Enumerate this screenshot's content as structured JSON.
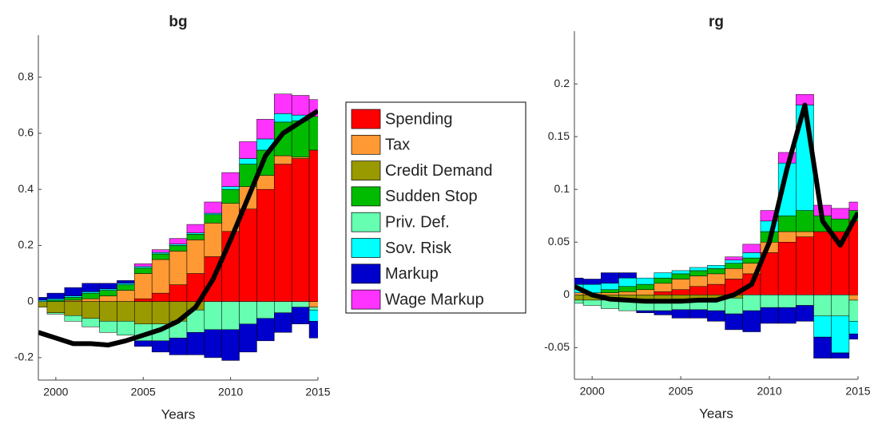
{
  "chart_data": [
    {
      "type": "bar",
      "stacked": true,
      "title": "bg",
      "x_label": "Years",
      "x": [
        1999,
        2000,
        2001,
        2002,
        2003,
        2004,
        2005,
        2006,
        2007,
        2008,
        2009,
        2010,
        2011,
        2012,
        2013,
        2014,
        2015
      ],
      "xlim": [
        1999,
        2015
      ],
      "xticks": [
        2000,
        2005,
        2010,
        2015
      ],
      "ylim": [
        -0.28,
        0.95
      ],
      "yticks": [
        -0.2,
        0,
        0.2,
        0.4,
        0.6,
        0.8
      ],
      "series": [
        {
          "values": [
            0,
            0,
            0,
            0,
            0,
            0,
            0.01,
            0.03,
            0.06,
            0.1,
            0.16,
            0.25,
            0.33,
            0.4,
            0.49,
            0.51,
            0.54
          ]
        },
        {
          "values": [
            0,
            0,
            0.005,
            0.01,
            0.02,
            0.04,
            0.09,
            0.12,
            0.12,
            0.12,
            0.12,
            0.1,
            0.08,
            0.05,
            0.03,
            0.005,
            -0.02
          ]
        },
        {
          "values": [
            -0.02,
            -0.04,
            -0.05,
            -0.06,
            -0.07,
            -0.07,
            -0.08,
            -0.08,
            -0.07,
            -0.03,
            0,
            0,
            0,
            0,
            0,
            0,
            0
          ]
        },
        {
          "values": [
            0,
            0.005,
            0.01,
            0.02,
            0.02,
            0.02,
            0.02,
            0.02,
            0.02,
            0.02,
            0.03,
            0.05,
            0.08,
            0.09,
            0.12,
            0.13,
            0.12
          ]
        },
        {
          "values": [
            0,
            -0.005,
            -0.02,
            -0.03,
            -0.04,
            -0.05,
            -0.06,
            -0.06,
            -0.06,
            -0.08,
            -0.1,
            -0.1,
            -0.08,
            -0.06,
            -0.04,
            -0.02,
            -0.01
          ]
        },
        {
          "values": [
            0.005,
            0.005,
            0.005,
            0.005,
            0.005,
            0.005,
            0.005,
            0.005,
            0.005,
            0.005,
            0.005,
            0.01,
            0.02,
            0.04,
            0.03,
            0.02,
            -0.04
          ]
        },
        {
          "values": [
            0.01,
            0.02,
            0.03,
            0.03,
            0.02,
            0.01,
            -0.02,
            -0.04,
            -0.06,
            -0.08,
            -0.1,
            -0.11,
            -0.1,
            -0.08,
            -0.07,
            -0.06,
            -0.06
          ]
        },
        {
          "values": [
            0,
            0,
            0,
            0,
            0,
            0,
            0.01,
            0.01,
            0.02,
            0.03,
            0.04,
            0.05,
            0.06,
            0.07,
            0.07,
            0.07,
            0.06
          ]
        }
      ],
      "line": {
        "color": "#000000",
        "values": [
          -0.11,
          -0.13,
          -0.15,
          -0.15,
          -0.155,
          -0.14,
          -0.12,
          -0.1,
          -0.07,
          -0.02,
          0.08,
          0.22,
          0.37,
          0.52,
          0.6,
          0.64,
          0.68
        ]
      }
    },
    {
      "type": "bar",
      "stacked": true,
      "title": "rg",
      "x_label": "Years",
      "x": [
        1999,
        2000,
        2001,
        2002,
        2003,
        2004,
        2005,
        2006,
        2007,
        2008,
        2009,
        2010,
        2011,
        2012,
        2013,
        2014,
        2015
      ],
      "xlim": [
        1999,
        2015
      ],
      "xticks": [
        2000,
        2005,
        2010,
        2015
      ],
      "ylim": [
        -0.08,
        0.25
      ],
      "yticks": [
        -0.05,
        0,
        0.05,
        0.1,
        0.15,
        0.2
      ],
      "series": [
        {
          "values": [
            0,
            0,
            0,
            0,
            0,
            0.003,
            0.005,
            0.008,
            0.01,
            0.015,
            0.02,
            0.04,
            0.05,
            0.055,
            0.06,
            0.06,
            0.07
          ]
        },
        {
          "values": [
            0.002,
            0.002,
            0.002,
            0.003,
            0.005,
            0.008,
            0.01,
            0.01,
            0.01,
            0.01,
            0.01,
            0.01,
            0.01,
            0.005,
            0,
            0,
            -0.005
          ]
        },
        {
          "values": [
            -0.005,
            -0.005,
            -0.005,
            -0.005,
            -0.005,
            -0.005,
            -0.004,
            -0.004,
            -0.003,
            -0.003,
            0,
            0,
            0,
            0,
            0,
            0,
            0
          ]
        },
        {
          "values": [
            0,
            0,
            0.003,
            0.005,
            0.005,
            0.005,
            0.005,
            0.005,
            0.005,
            0.005,
            0.005,
            0.01,
            0.015,
            0.02,
            0.015,
            0.012,
            0.01
          ]
        },
        {
          "values": [
            -0.003,
            -0.005,
            -0.008,
            -0.01,
            -0.01,
            -0.01,
            -0.01,
            -0.01,
            -0.012,
            -0.015,
            -0.015,
            -0.012,
            -0.012,
            -0.01,
            -0.02,
            -0.02,
            -0.02
          ]
        },
        {
          "values": [
            0.008,
            0.008,
            0.006,
            0.008,
            0.006,
            0.005,
            0.003,
            0.003,
            0.003,
            0.003,
            0.005,
            0.01,
            0.05,
            0.1,
            -0.02,
            -0.035,
            -0.012
          ]
        },
        {
          "values": [
            0.006,
            0.005,
            0.01,
            0.005,
            -0.002,
            -0.004,
            -0.008,
            -0.008,
            -0.01,
            -0.015,
            -0.02,
            -0.015,
            -0.015,
            -0.015,
            -0.02,
            -0.005,
            -0.005
          ]
        },
        {
          "values": [
            0,
            0,
            0,
            0,
            0,
            0,
            0,
            0,
            0,
            0.003,
            0.008,
            0.01,
            0.01,
            0.01,
            0.01,
            0.01,
            0.008
          ]
        }
      ],
      "line": {
        "color": "#000000",
        "values": [
          0.008,
          0,
          -0.004,
          -0.005,
          -0.006,
          -0.006,
          -0.006,
          -0.005,
          -0.005,
          0,
          0.01,
          0.05,
          0.12,
          0.18,
          0.07,
          0.047,
          0.078
        ]
      }
    }
  ],
  "legend": [
    {
      "name": "Spending",
      "color": "#ff0000"
    },
    {
      "name": "Tax",
      "color": "#ff9933"
    },
    {
      "name": "Credit Demand",
      "color": "#999900"
    },
    {
      "name": "Sudden Stop",
      "color": "#00bb00"
    },
    {
      "name": "Priv. Def.",
      "color": "#66ffb2"
    },
    {
      "name": "Sov. Risk",
      "color": "#00ffff"
    },
    {
      "name": "Markup",
      "color": "#0000cc"
    },
    {
      "name": "Wage Markup",
      "color": "#ff33ff"
    }
  ]
}
